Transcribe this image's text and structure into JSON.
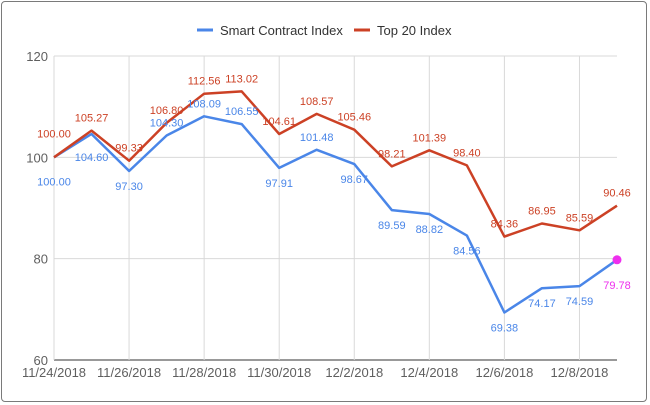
{
  "chart_data": {
    "type": "line",
    "title": "",
    "xlabel": "",
    "ylabel": "",
    "categories": [
      "11/24/2018",
      "11/25/2018",
      "11/26/2018",
      "11/27/2018",
      "11/28/2018",
      "11/29/2018",
      "11/30/2018",
      "12/1/2018",
      "12/2/2018",
      "12/3/2018",
      "12/4/2018",
      "12/5/2018",
      "12/6/2018",
      "12/7/2018",
      "12/8/2018",
      "12/9/2018"
    ],
    "x_tick_labels": [
      "11/24/2018",
      "11/26/2018",
      "11/28/2018",
      "11/30/2018",
      "12/2/2018",
      "12/4/2018",
      "12/6/2018",
      "12/8/2018"
    ],
    "ylim": [
      60,
      120
    ],
    "y_ticks": [
      60,
      80,
      100,
      120
    ],
    "grid": true,
    "legend_position": "top-center",
    "series": [
      {
        "name": "Smart Contract Index",
        "color": "#4a86e8",
        "values": [
          100.0,
          104.6,
          97.3,
          104.3,
          108.09,
          106.55,
          97.91,
          101.48,
          98.67,
          89.59,
          88.82,
          84.56,
          69.38,
          74.17,
          74.59,
          79.78
        ],
        "labels": [
          "100.00",
          "104.60",
          "97.30",
          "104.30",
          "108.09",
          "106.55",
          "97.91",
          "101.48",
          "98.67",
          "89.59",
          "88.82",
          "84.56",
          "69.38",
          "74.17",
          "74.59",
          "79.78"
        ],
        "highlight_last_color": "#ee2fee"
      },
      {
        "name": "Top 20 Index",
        "color": "#cc4125",
        "values": [
          100.0,
          105.27,
          99.33,
          106.8,
          112.56,
          113.02,
          104.61,
          108.57,
          105.46,
          98.21,
          101.39,
          98.4,
          84.36,
          86.95,
          85.59,
          90.46
        ],
        "labels": [
          "100.00",
          "105.27",
          "99.33",
          "106.80",
          "112.56",
          "113.02",
          "104.61",
          "108.57",
          "105.46",
          "98.21",
          "101.39",
          "98.40",
          "84.36",
          "86.95",
          "85.59",
          "90.46"
        ]
      }
    ]
  }
}
